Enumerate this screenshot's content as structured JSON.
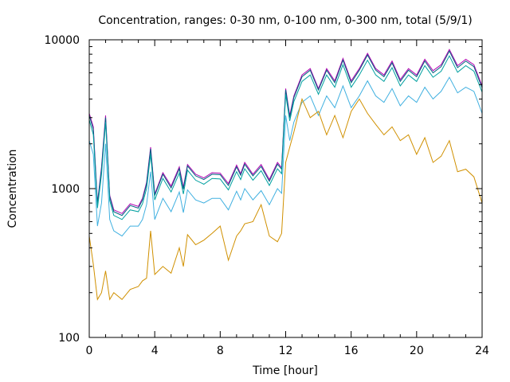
{
  "chart_data": {
    "type": "line",
    "title": "Concentration, ranges: 0-30 nm, 0-100 nm, 0-300 nm, total (5/9/1)",
    "xlabel": "Time [hour]",
    "ylabel": "Concentration",
    "xlim": [
      0,
      24
    ],
    "ylim": [
      100,
      10000
    ],
    "y_scale": "log",
    "grid": false,
    "legend": "none",
    "x_ticks": [
      0,
      4,
      8,
      12,
      16,
      20,
      24
    ],
    "x_tick_labels": [
      "0",
      "4",
      "8",
      "12",
      "16",
      "20",
      "24"
    ],
    "y_ticks": [
      100,
      1000,
      10000
    ],
    "y_tick_labels": [
      "100",
      "1000",
      "10000"
    ],
    "x": [
      0,
      0.25,
      0.5,
      0.75,
      1.0,
      1.25,
      1.5,
      2.0,
      2.5,
      3.0,
      3.25,
      3.5,
      3.75,
      4.0,
      4.5,
      5.0,
      5.5,
      5.75,
      6.0,
      6.5,
      7.0,
      7.5,
      8.0,
      8.5,
      9.0,
      9.25,
      9.5,
      10.0,
      10.5,
      11.0,
      11.5,
      11.75,
      12.0,
      12.25,
      12.5,
      13.0,
      13.5,
      14.0,
      14.5,
      15.0,
      15.5,
      16.0,
      16.5,
      17.0,
      17.5,
      18.0,
      18.5,
      19.0,
      19.5,
      20.0,
      20.5,
      21.0,
      21.5,
      22.0,
      22.5,
      23.0,
      23.5,
      24.0
    ],
    "series": [
      {
        "color": "#b000b0",
        "values": [
          3200,
          2600,
          800,
          1400,
          3100,
          900,
          720,
          680,
          790,
          760,
          860,
          1100,
          1900,
          920,
          1280,
          1040,
          1400,
          1020,
          1450,
          1250,
          1180,
          1280,
          1270,
          1080,
          1440,
          1260,
          1500,
          1250,
          1450,
          1150,
          1500,
          1380,
          4700,
          3100,
          4200,
          5800,
          6400,
          4700,
          6400,
          5300,
          7500,
          5300,
          6400,
          8100,
          6400,
          5800,
          7200,
          5400,
          6400,
          5800,
          7400,
          6200,
          6800,
          8600,
          6700,
          7400,
          6800,
          4900
        ]
      },
      {
        "color": "#006080",
        "values": [
          3100,
          2500,
          780,
          1350,
          3000,
          880,
          700,
          660,
          770,
          740,
          840,
          1070,
          1850,
          900,
          1250,
          1010,
          1360,
          990,
          1420,
          1220,
          1150,
          1250,
          1240,
          1050,
          1400,
          1230,
          1460,
          1220,
          1410,
          1120,
          1460,
          1350,
          4600,
          3000,
          4100,
          5650,
          6250,
          4600,
          6250,
          5150,
          7300,
          5150,
          6250,
          7900,
          6250,
          5650,
          7000,
          5250,
          6250,
          5650,
          7200,
          6000,
          6600,
          8400,
          6500,
          7200,
          6600,
          4750
        ]
      },
      {
        "color": "#00a0a0",
        "values": [
          2900,
          2300,
          740,
          1250,
          2800,
          830,
          660,
          620,
          720,
          700,
          790,
          1000,
          1700,
          840,
          1170,
          950,
          1270,
          920,
          1330,
          1140,
          1070,
          1170,
          1160,
          980,
          1300,
          1150,
          1360,
          1140,
          1320,
          1050,
          1360,
          1260,
          4300,
          2850,
          3850,
          5250,
          5800,
          4300,
          5800,
          4800,
          6800,
          4800,
          5800,
          7300,
          5800,
          5250,
          6500,
          4900,
          5800,
          5250,
          6700,
          5600,
          6150,
          7800,
          6050,
          6700,
          6150,
          4450
        ]
      },
      {
        "color": "#40b0e0",
        "values": [
          2100,
          1700,
          560,
          800,
          2000,
          620,
          520,
          480,
          560,
          560,
          620,
          780,
          1300,
          620,
          860,
          700,
          950,
          690,
          980,
          840,
          800,
          860,
          860,
          720,
          960,
          840,
          1000,
          840,
          970,
          780,
          1000,
          930,
          3100,
          2100,
          2800,
          3800,
          4200,
          3100,
          4200,
          3500,
          4900,
          3500,
          4200,
          5300,
          4200,
          3800,
          4700,
          3600,
          4200,
          3800,
          4800,
          4000,
          4500,
          5600,
          4400,
          4800,
          4500,
          3200
        ]
      },
      {
        "color": "#d09000",
        "values": [
          480,
          310,
          180,
          200,
          280,
          180,
          200,
          180,
          210,
          220,
          240,
          250,
          520,
          265,
          300,
          270,
          400,
          300,
          490,
          420,
          450,
          500,
          560,
          330,
          480,
          520,
          580,
          600,
          780,
          480,
          440,
          500,
          1500,
          1900,
          2400,
          4000,
          3000,
          3300,
          2300,
          3100,
          2200,
          3300,
          4000,
          3200,
          2700,
          2300,
          2600,
          2100,
          2300,
          1700,
          2200,
          1500,
          1650,
          2100,
          1300,
          1350,
          1200,
          800
        ]
      }
    ]
  }
}
